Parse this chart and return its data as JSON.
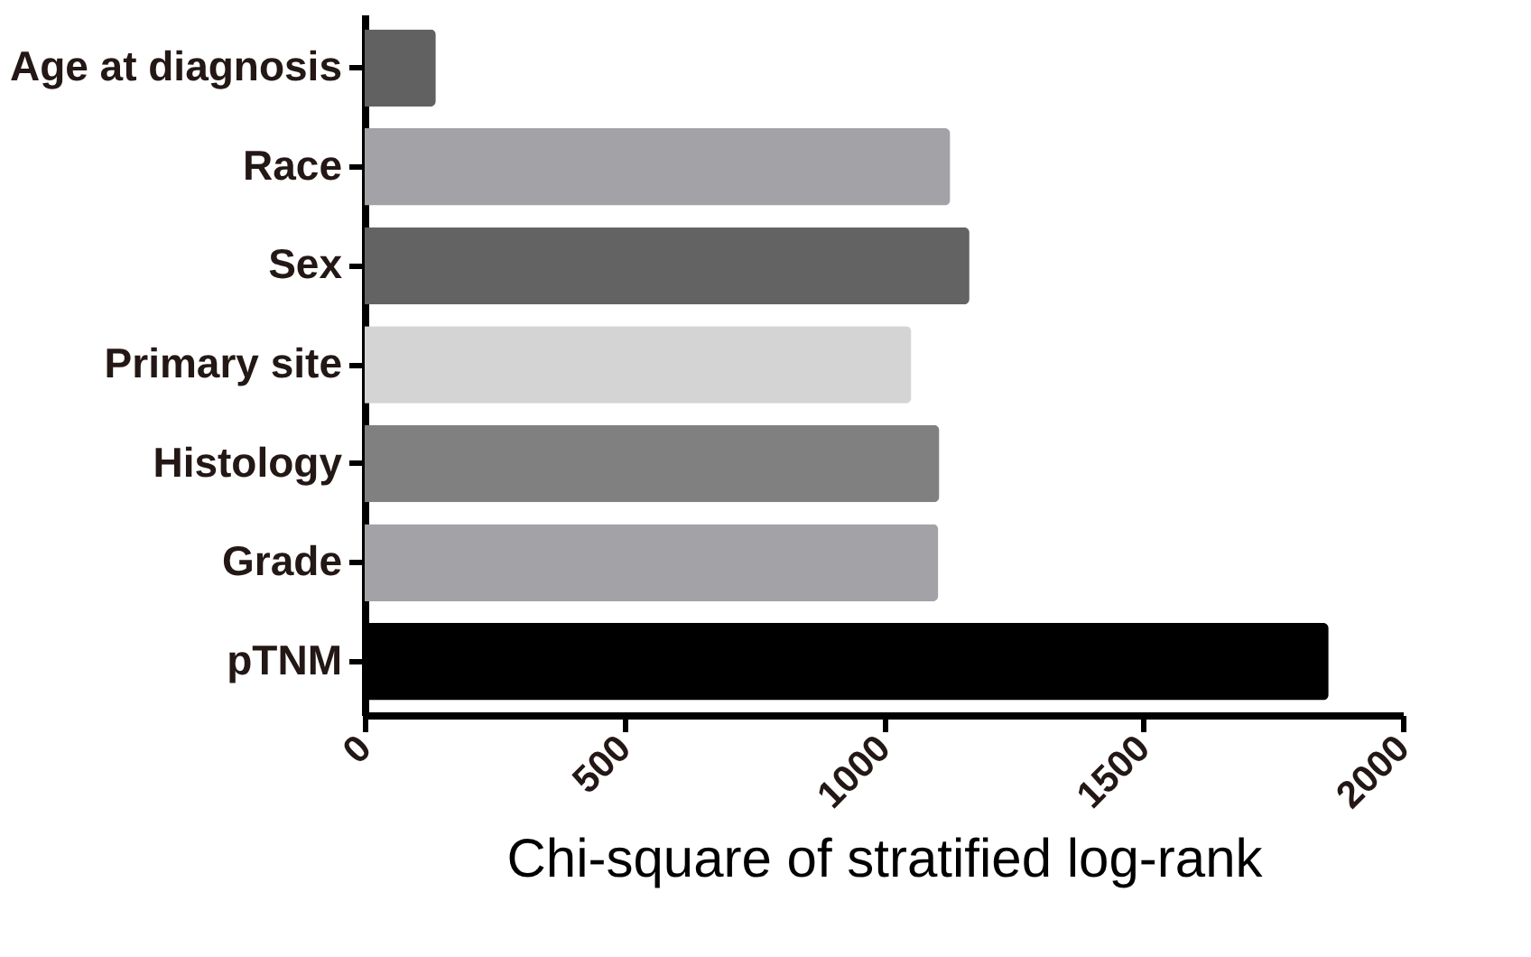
{
  "chart_data": {
    "type": "bar",
    "orientation": "horizontal",
    "xlabel": "Chi-square of stratified log-rank",
    "categories": [
      "Age at diagnosis",
      "Race",
      "Sex",
      "Primary site",
      "Histology",
      "Grade",
      "pTNM"
    ],
    "values": [
      137,
      1128,
      1165,
      1053,
      1107,
      1105,
      1857
    ],
    "colors": [
      "#616161",
      "#a3a2a6",
      "#636363",
      "#d4d4d4",
      "#808080",
      "#a3a2a6",
      "#000000"
    ],
    "xlim": [
      0,
      2000
    ],
    "xticks": [
      0,
      500,
      1000,
      1500,
      2000
    ],
    "grid": false
  }
}
